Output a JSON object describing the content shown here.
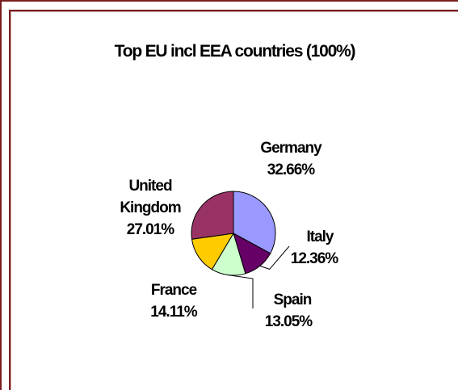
{
  "chart_data": {
    "type": "pie",
    "title": "Top EU incl EEA countries (100%)",
    "slices": [
      {
        "label": "Germany",
        "value": 32.66,
        "value_label": "32.66%",
        "color": "#9999ff"
      },
      {
        "label": "Italy",
        "value": 12.36,
        "value_label": "12.36%",
        "color": "#660066"
      },
      {
        "label": "Spain",
        "value": 13.05,
        "value_label": "13.05%",
        "color": "#ccffcc"
      },
      {
        "label": "France",
        "value": 14.11,
        "value_label": "14.11%",
        "color": "#ffcc00"
      },
      {
        "label": "United Kingdom",
        "value": 27.01,
        "value_label": "27.01%",
        "color": "#993366",
        "label_lines": [
          "United",
          "Kingdom"
        ]
      }
    ]
  }
}
